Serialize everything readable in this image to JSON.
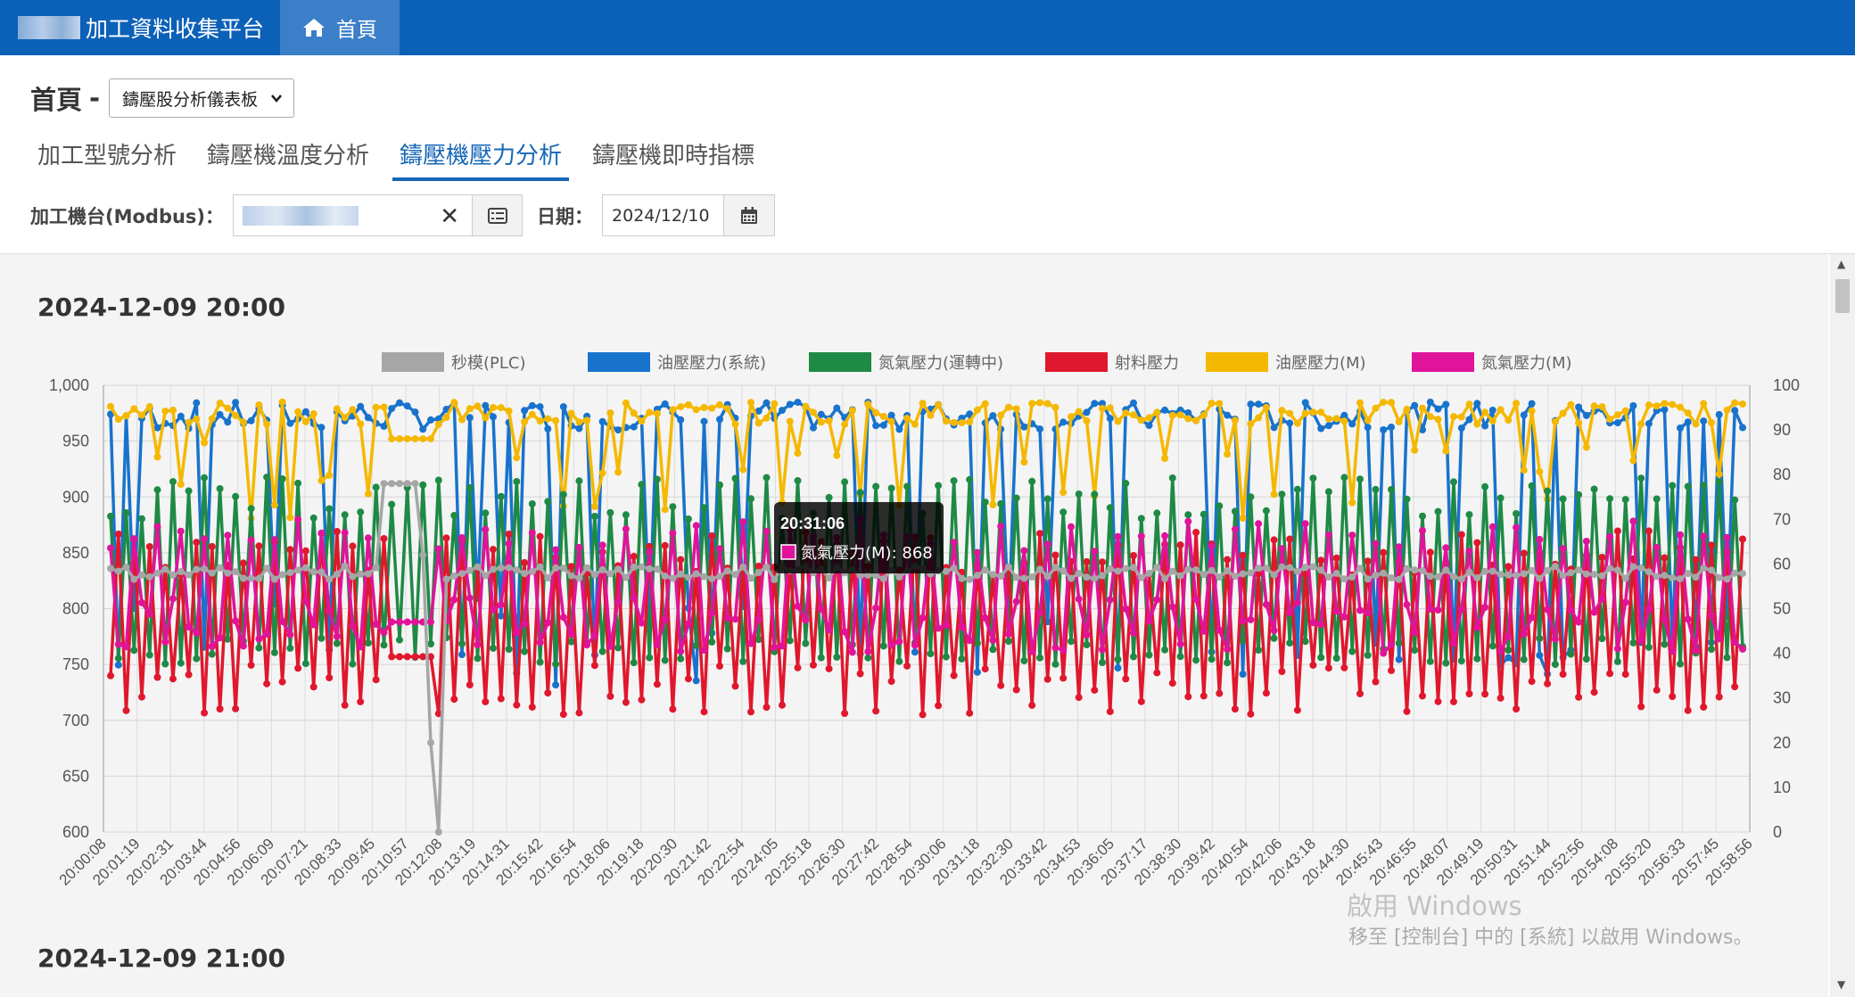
{
  "app": {
    "title": "加工資料收集平台"
  },
  "nav": {
    "home_label": "首頁"
  },
  "header": {
    "page_title": "首頁",
    "separator": "-",
    "dashboard_select": "鑄壓股分析儀表板",
    "tabs": [
      {
        "label": "加工型號分析",
        "active": false
      },
      {
        "label": "鑄壓機溫度分析",
        "active": false
      },
      {
        "label": "鑄壓機壓力分析",
        "active": true
      },
      {
        "label": "鑄壓機即時指標",
        "active": false
      }
    ]
  },
  "filter": {
    "machine_label": "加工機台(Modbus)：",
    "date_label": "日期：",
    "date_value": "2024/12/10"
  },
  "sections": [
    {
      "title": "2024-12-09 20:00"
    },
    {
      "title": "2024-12-09 21:00"
    }
  ],
  "tooltip": {
    "time": "20:31:06",
    "series": "氮氣壓力(M)",
    "value": "868",
    "text": "氮氣壓力(M): 868"
  },
  "watermark": {
    "line1": "啟用 Windows",
    "line2": "移至 [控制台] 中的 [系統] 以啟用 Windows。"
  },
  "chart_data": {
    "type": "line",
    "left_axis": {
      "min": 600,
      "max": 1000,
      "ticks": [
        "600",
        "650",
        "700",
        "750",
        "800",
        "850",
        "900",
        "950",
        "1,000"
      ]
    },
    "right_axis": {
      "min": 0,
      "max": 100,
      "ticks": [
        "0",
        "10",
        "20",
        "30",
        "40",
        "50",
        "60",
        "70",
        "80",
        "90",
        "100"
      ]
    },
    "x_ticks": [
      "20:00:08",
      "20:01:19",
      "20:02:31",
      "20:03:44",
      "20:04:56",
      "20:06:09",
      "20:07:21",
      "20:08:33",
      "20:09:45",
      "20:10:57",
      "20:12:08",
      "20:13:19",
      "20:14:31",
      "20:15:42",
      "20:16:54",
      "20:18:06",
      "20:19:18",
      "20:20:30",
      "20:21:42",
      "20:22:54",
      "20:24:05",
      "20:25:18",
      "20:26:30",
      "20:27:42",
      "20:28:54",
      "20:30:06",
      "20:31:18",
      "20:32:30",
      "20:33:42",
      "20:34:53",
      "20:36:05",
      "20:37:17",
      "20:38:30",
      "20:39:42",
      "20:40:54",
      "20:42:06",
      "20:43:18",
      "20:44:30",
      "20:45:43",
      "20:46:55",
      "20:48:07",
      "20:49:19",
      "20:50:31",
      "20:51:44",
      "20:52:56",
      "20:54:08",
      "20:55:20",
      "20:56:33",
      "20:57:45",
      "20:58:56"
    ],
    "grid": true,
    "legend_position": "top",
    "series": [
      {
        "name": "秒模(PLC)",
        "color": "#a6a6a6",
        "axis": "right",
        "level": 58,
        "values": [
          58,
          57,
          58,
          58,
          59,
          58,
          58,
          57,
          58,
          58,
          58,
          57,
          58,
          58,
          58,
          58,
          58,
          58,
          58,
          78,
          78,
          56,
          20,
          0,
          58,
          58,
          58,
          58,
          58,
          58,
          58,
          58,
          58,
          58,
          58,
          58,
          58,
          58,
          58,
          58,
          58,
          58,
          58,
          58,
          58,
          58,
          58,
          58,
          58,
          58
        ]
      },
      {
        "name": "油壓壓力(系統)",
        "color": "#1873cc",
        "axis": "left",
        "range": [
          730,
          985
        ],
        "values": [
          975,
          978,
          972,
          980,
          750,
          978,
          974,
          968,
          740,
          980,
          982,
          975,
          970,
          978,
          965,
          980,
          975,
          760,
          980,
          978
        ]
      },
      {
        "name": "氮氣壓力(運轉中)",
        "color": "#1e8a45",
        "axis": "left",
        "range": [
          750,
          918
        ],
        "values": [
          760,
          915,
          780,
          905,
          760,
          910,
          770,
          900,
          765,
          912,
          775,
          905,
          760,
          908,
          770,
          902,
          760,
          910,
          775,
          915
        ]
      },
      {
        "name": "射料壓力",
        "color": "#e0182d",
        "axis": "left",
        "range": [
          705,
          870
        ],
        "values": [
          740,
          860,
          730,
          855,
          745,
          865,
          735,
          850,
          710,
          860,
          745,
          858,
          735,
          862,
          740,
          855,
          725,
          860,
          745,
          865
        ]
      },
      {
        "name": "油壓壓力(M)",
        "color": "#f5b800",
        "axis": "left",
        "range": [
          880,
          985
        ],
        "values": [
          980,
          975,
          930,
          978,
          900,
          980,
          975,
          960,
          980,
          955,
          978,
          980,
          950,
          975,
          982,
          970,
          978,
          960,
          975,
          980
        ]
      },
      {
        "name": "氮氣壓力(M)",
        "color": "#e0149b",
        "axis": "left",
        "range": [
          760,
          880
        ],
        "values": [
          870,
          790,
          860,
          780,
          868,
          800,
          865,
          790,
          785,
          860,
          795,
          868,
          780,
          862,
          800,
          868,
          790,
          855,
          790,
          868
        ]
      }
    ]
  }
}
